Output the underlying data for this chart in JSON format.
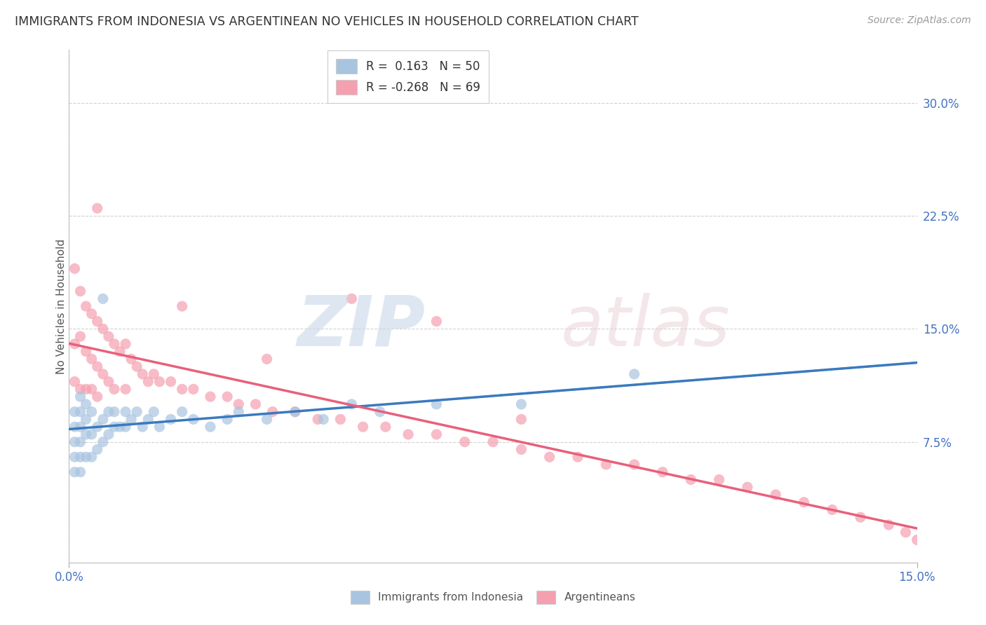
{
  "title": "IMMIGRANTS FROM INDONESIA VS ARGENTINEAN NO VEHICLES IN HOUSEHOLD CORRELATION CHART",
  "source": "Source: ZipAtlas.com",
  "ylabel": "No Vehicles in Household",
  "ytick_vals": [
    0.075,
    0.15,
    0.225,
    0.3
  ],
  "xrange": [
    0.0,
    0.15
  ],
  "yrange": [
    -0.005,
    0.335
  ],
  "legend_label1": "R =  0.163   N = 50",
  "legend_label2": "R = -0.268   N = 69",
  "series1_label": "Immigrants from Indonesia",
  "series2_label": "Argentineans",
  "series1_color": "#a8c4e0",
  "series2_color": "#f4a0b0",
  "line1_color": "#3a7abf",
  "line2_color": "#e8607a",
  "line1_style": "solid",
  "line2_style": "solid",
  "background_color": "#ffffff",
  "series1_x": [
    0.001,
    0.001,
    0.001,
    0.001,
    0.001,
    0.002,
    0.002,
    0.002,
    0.002,
    0.002,
    0.002,
    0.003,
    0.003,
    0.003,
    0.003,
    0.004,
    0.004,
    0.004,
    0.005,
    0.005,
    0.006,
    0.006,
    0.006,
    0.007,
    0.007,
    0.008,
    0.008,
    0.009,
    0.01,
    0.01,
    0.011,
    0.012,
    0.013,
    0.014,
    0.015,
    0.016,
    0.018,
    0.02,
    0.022,
    0.025,
    0.028,
    0.03,
    0.035,
    0.04,
    0.045,
    0.05,
    0.055,
    0.065,
    0.08,
    0.1
  ],
  "series1_y": [
    0.055,
    0.065,
    0.075,
    0.085,
    0.095,
    0.055,
    0.065,
    0.075,
    0.085,
    0.095,
    0.105,
    0.065,
    0.08,
    0.09,
    0.1,
    0.065,
    0.08,
    0.095,
    0.07,
    0.085,
    0.075,
    0.09,
    0.17,
    0.08,
    0.095,
    0.085,
    0.095,
    0.085,
    0.085,
    0.095,
    0.09,
    0.095,
    0.085,
    0.09,
    0.095,
    0.085,
    0.09,
    0.095,
    0.09,
    0.085,
    0.09,
    0.095,
    0.09,
    0.095,
    0.09,
    0.1,
    0.095,
    0.1,
    0.1,
    0.12
  ],
  "series2_x": [
    0.001,
    0.001,
    0.001,
    0.002,
    0.002,
    0.002,
    0.003,
    0.003,
    0.003,
    0.004,
    0.004,
    0.004,
    0.005,
    0.005,
    0.005,
    0.006,
    0.006,
    0.007,
    0.007,
    0.008,
    0.008,
    0.009,
    0.01,
    0.01,
    0.011,
    0.012,
    0.013,
    0.014,
    0.015,
    0.016,
    0.018,
    0.02,
    0.022,
    0.025,
    0.028,
    0.03,
    0.033,
    0.036,
    0.04,
    0.044,
    0.048,
    0.052,
    0.056,
    0.06,
    0.065,
    0.07,
    0.075,
    0.08,
    0.085,
    0.09,
    0.095,
    0.1,
    0.105,
    0.11,
    0.115,
    0.12,
    0.125,
    0.13,
    0.135,
    0.14,
    0.145,
    0.148,
    0.15,
    0.005,
    0.02,
    0.035,
    0.05,
    0.065,
    0.08
  ],
  "series2_y": [
    0.19,
    0.14,
    0.115,
    0.175,
    0.145,
    0.11,
    0.165,
    0.135,
    0.11,
    0.16,
    0.13,
    0.11,
    0.155,
    0.125,
    0.105,
    0.15,
    0.12,
    0.145,
    0.115,
    0.14,
    0.11,
    0.135,
    0.14,
    0.11,
    0.13,
    0.125,
    0.12,
    0.115,
    0.12,
    0.115,
    0.115,
    0.11,
    0.11,
    0.105,
    0.105,
    0.1,
    0.1,
    0.095,
    0.095,
    0.09,
    0.09,
    0.085,
    0.085,
    0.08,
    0.08,
    0.075,
    0.075,
    0.07,
    0.065,
    0.065,
    0.06,
    0.06,
    0.055,
    0.05,
    0.05,
    0.045,
    0.04,
    0.035,
    0.03,
    0.025,
    0.02,
    0.015,
    0.01,
    0.23,
    0.165,
    0.13,
    0.17,
    0.155,
    0.09
  ]
}
